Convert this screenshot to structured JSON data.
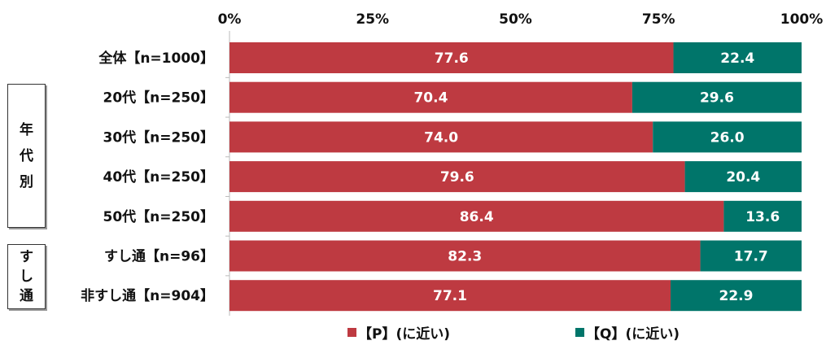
{
  "chart_data": {
    "type": "bar",
    "orientation": "horizontal",
    "stacked": "percent",
    "xlim": [
      0,
      100
    ],
    "xticks": [
      "0%",
      "25%",
      "50%",
      "75%",
      "100%"
    ],
    "grid": false,
    "legend_position": "bottom",
    "categories": [
      "全体【n=1000】",
      "20代【n=250】",
      "30代【n=250】",
      "40代【n=250】",
      "50代【n=250】",
      "すし通【n=96】",
      "非すし通【n=904】"
    ],
    "series": [
      {
        "name": "【P】(に近い)",
        "color": "#be3a41",
        "values": [
          77.6,
          70.4,
          74.0,
          79.6,
          86.4,
          82.3,
          77.1
        ],
        "labels": [
          "77.6",
          "70.4",
          "74.0",
          "79.6",
          "86.4",
          "82.3",
          "77.1"
        ]
      },
      {
        "name": "【Q】(に近い)",
        "color": "#00756a",
        "values": [
          22.4,
          29.6,
          26.0,
          20.4,
          13.6,
          17.7,
          22.9
        ],
        "labels": [
          "22.4",
          "29.6",
          "26.0",
          "20.4",
          "13.6",
          "17.7",
          "22.9"
        ]
      }
    ],
    "groups": [
      {
        "label": [
          "年",
          "代",
          "別"
        ]
      },
      {
        "label": [
          "す",
          "し",
          "通"
        ]
      }
    ]
  }
}
